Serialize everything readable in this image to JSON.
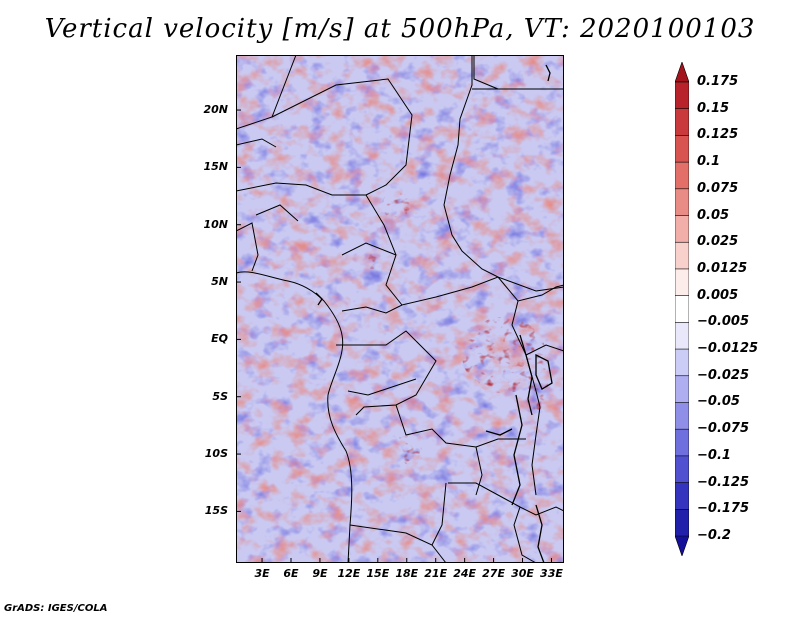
{
  "title": "Vertical velocity [m/s] at 500hPa, VT: 2020100103",
  "map": {
    "region": "Central Africa",
    "lat_labels": [
      "20N",
      "15N",
      "10N",
      "5N",
      "EQ",
      "5S",
      "10S",
      "15S"
    ],
    "lon_labels": [
      "3E",
      "6E",
      "9E",
      "12E",
      "15E",
      "18E",
      "21E",
      "24E",
      "27E",
      "30E",
      "33E"
    ],
    "lat_values": [
      20,
      15,
      10,
      5,
      0,
      -5,
      -10,
      -15
    ],
    "lon_values": [
      3,
      6,
      9,
      12,
      15,
      18,
      21,
      24,
      27,
      30,
      33
    ],
    "extent": {
      "lon_min": 0.3,
      "lon_max": 34.3,
      "lat_min": -19.5,
      "lat_max": 24.8
    }
  },
  "colorbar": {
    "labels": [
      "0.175",
      "0.15",
      "0.125",
      "0.1",
      "0.075",
      "0.05",
      "0.025",
      "0.0125",
      "0.005",
      "−0.005",
      "−0.0125",
      "−0.025",
      "−0.05",
      "−0.075",
      "−0.1",
      "−0.125",
      "−0.175",
      "−0.2"
    ],
    "colors": [
      "#a4141c",
      "#b8222a",
      "#c83a3c",
      "#d85450",
      "#e27068",
      "#ea8c86",
      "#f2aea8",
      "#f8d0cc",
      "#fcecea",
      "#ffffff",
      "#e8e8fa",
      "#cccdf6",
      "#aeaef0",
      "#8f8fe8",
      "#6f6fde",
      "#5050d0",
      "#3434be",
      "#2020aa",
      "#14109a"
    ]
  },
  "footer": "GrADS: IGES/COLA"
}
